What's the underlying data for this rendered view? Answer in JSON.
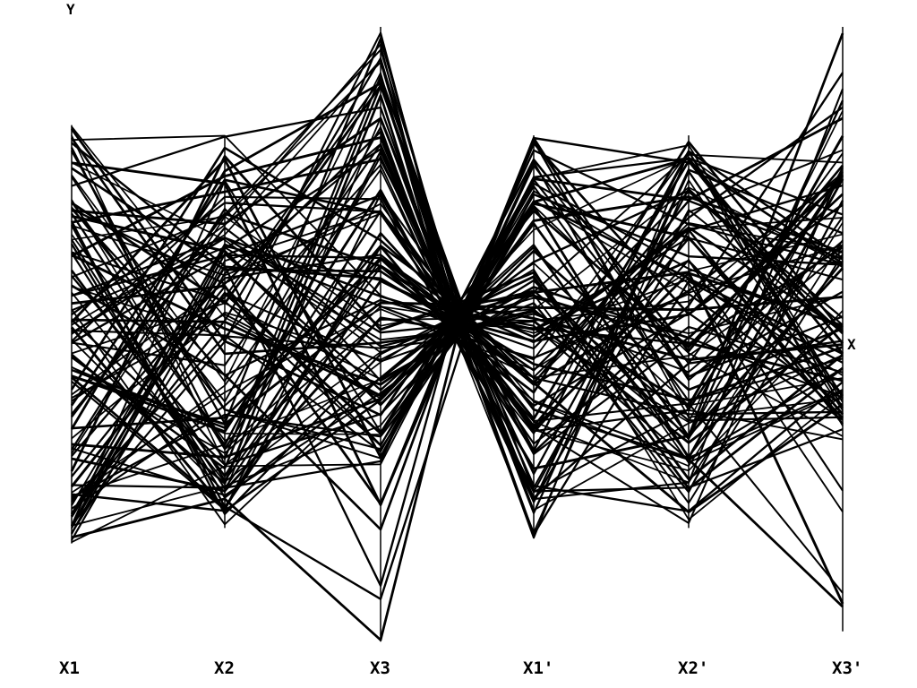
{
  "chart_data": {
    "type": "parallel-coordinates",
    "axes": [
      "X1",
      "X2",
      "X3",
      "X1'",
      "X2'",
      "X3'"
    ],
    "y_axis_label": "Y",
    "right_axis_label": "X",
    "line_color": "#000000",
    "background": "#ffffff",
    "series_count": 110,
    "axis_value_range": [
      0.0,
      1.0
    ],
    "axis_extents": [
      [
        0.0,
        0.81
      ],
      [
        0.03,
        0.79
      ],
      [
        -0.19,
        1.0
      ],
      [
        0.01,
        0.79
      ],
      [
        0.03,
        0.79
      ],
      [
        -0.17,
        1.0
      ]
    ]
  }
}
